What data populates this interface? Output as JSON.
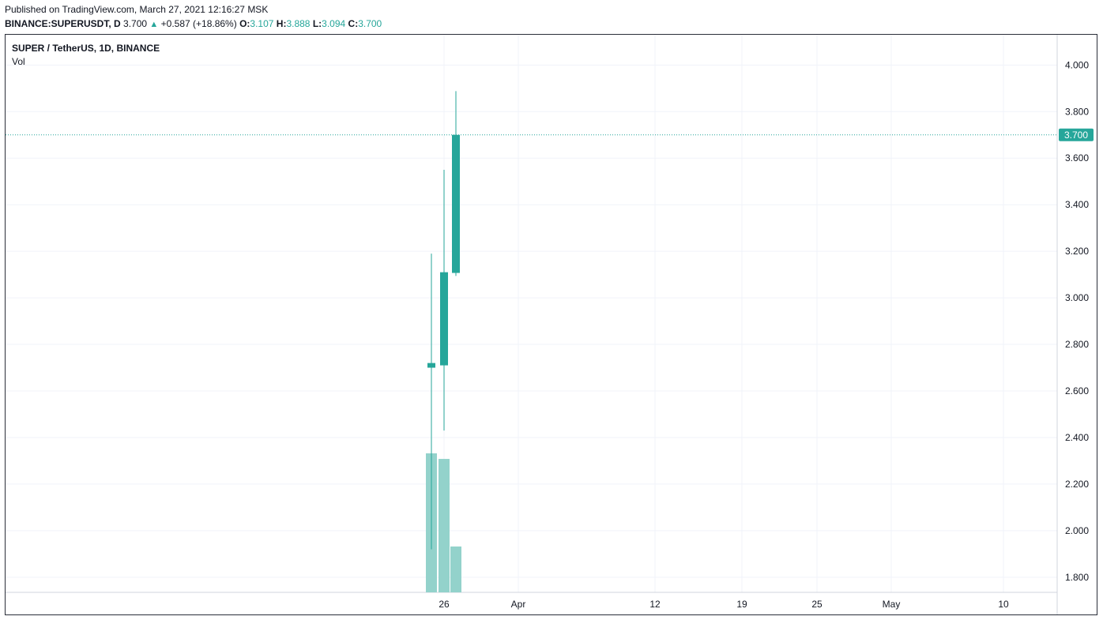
{
  "header": {
    "published": "Published on TradingView.com, March 27, 2021 12:16:27 MSK",
    "symbol": "BINANCE:SUPERUSDT, D",
    "last": "3.700",
    "arrow": "▲",
    "change": "+0.587 (+18.86%)",
    "o_label": "O:",
    "o_value": "3.107",
    "h_label": "H:",
    "h_value": "3.888",
    "l_label": "L:",
    "l_value": "3.094",
    "c_label": "C:",
    "c_value": "3.700"
  },
  "legend": {
    "title": "SUPER / TetherUS, 1D, BINANCE",
    "vol": "Vol"
  },
  "price_badge": "3.700",
  "colors": {
    "up": "#26a69a",
    "up_volume": "#93d2cb",
    "grid": "#f0f3fa",
    "text": "#131722",
    "border": "#2a2e39"
  },
  "chart_data": {
    "type": "candlestick",
    "title": "SUPER / TetherUS, 1D, BINANCE",
    "interval": "1D",
    "x_ticks": [
      "26",
      "Apr",
      "12",
      "19",
      "25",
      "May",
      "10"
    ],
    "y_ticks": [
      "1.800",
      "2.000",
      "2.200",
      "2.400",
      "2.600",
      "2.800",
      "3.000",
      "3.200",
      "3.400",
      "3.600",
      "3.800",
      "4.000"
    ],
    "ylim": [
      1.735,
      4.13
    ],
    "grid": true,
    "last_price_line": 3.7,
    "candles": [
      {
        "date": "2021-03-25",
        "open": 2.7,
        "high": 3.19,
        "low": 1.92,
        "close": 2.72
      },
      {
        "date": "2021-03-26",
        "open": 2.71,
        "high": 3.55,
        "low": 2.43,
        "close": 3.11
      },
      {
        "date": "2021-03-27",
        "open": 3.107,
        "high": 3.888,
        "low": 3.094,
        "close": 3.7
      }
    ],
    "volume_relative": [
      1.0,
      0.96,
      0.33
    ]
  }
}
